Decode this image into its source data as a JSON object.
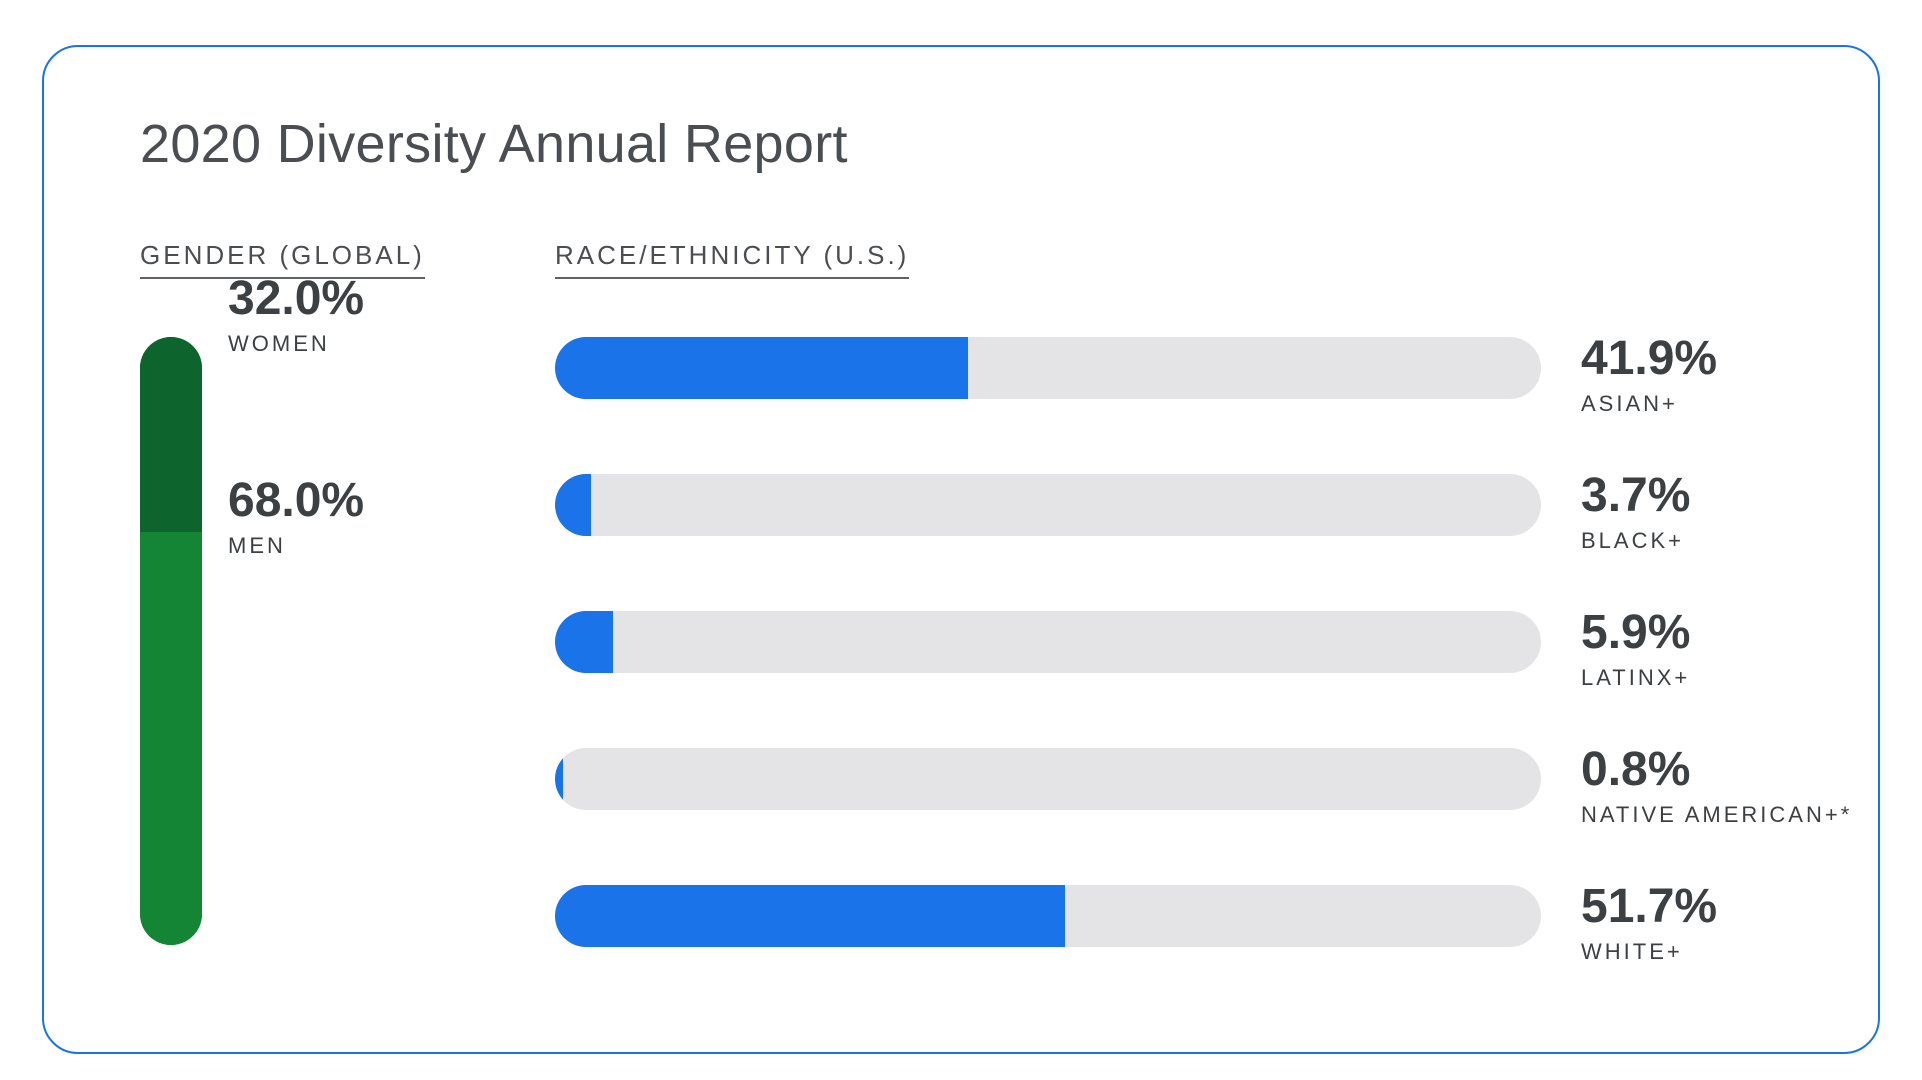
{
  "title": "2020 Diversity Annual Report",
  "colors": {
    "border": "#1a73e8",
    "women": "#0d652d",
    "men": "#138535",
    "race_fill": "#1a73e8",
    "track": "#e4e4e6"
  },
  "chart_data": [
    {
      "type": "bar",
      "orientation": "vertical-stacked",
      "title": "GENDER (GLOBAL)",
      "categories": [
        "WOMEN",
        "MEN"
      ],
      "values": [
        32.0,
        68.0
      ],
      "labels": [
        "32.0%",
        "68.0%"
      ],
      "unit": "%"
    },
    {
      "type": "bar",
      "orientation": "horizontal",
      "title": "RACE/ETHNICITY (U.S.)",
      "categories": [
        "ASIAN+",
        "BLACK+",
        "LATINX+",
        "NATIVE AMERICAN+*",
        "WHITE+"
      ],
      "values": [
        41.9,
        3.7,
        5.9,
        0.8,
        51.7
      ],
      "labels": [
        "41.9%",
        "3.7%",
        "5.9%",
        "0.8%",
        "51.7%"
      ],
      "xlim": [
        0,
        100
      ],
      "unit": "%"
    }
  ]
}
